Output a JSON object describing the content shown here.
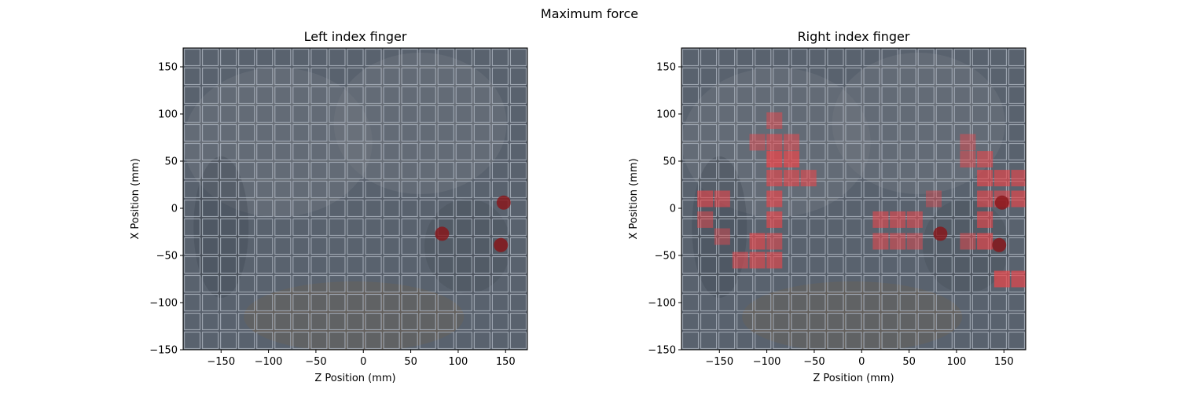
{
  "figure_title": "Maximum force",
  "colors": {
    "background_tile": "#5f6977",
    "tile_stroke": "#a7afbb",
    "highlight": "#e8464b",
    "marker": "#8a1418",
    "shade": "#2f333b"
  },
  "chart_data": [
    {
      "type": "heatmap",
      "title": "Left index finger",
      "xlabel": "Z Position (mm)",
      "ylabel": "X Position (mm)",
      "xlim": [
        -190,
        173
      ],
      "ylim": [
        -150,
        170
      ],
      "xticks": [
        -150,
        -100,
        -50,
        0,
        50,
        100,
        150
      ],
      "yticks": [
        -150,
        -100,
        -50,
        0,
        50,
        100,
        150
      ],
      "xtick_labels": [
        "−150",
        "−100",
        "−50",
        "0",
        "50",
        "100",
        "150"
      ],
      "ytick_labels": [
        "−150",
        "−100",
        "−50",
        "0",
        "50",
        "100",
        "150"
      ],
      "grid": true,
      "highlighted_cells": [],
      "markers": [
        {
          "x": 83,
          "y": -27
        },
        {
          "x": 148,
          "y": 6
        },
        {
          "x": 145,
          "y": -39
        }
      ]
    },
    {
      "type": "heatmap",
      "title": "Right index finger",
      "xlabel": "Z Position (mm)",
      "ylabel": "X Position (mm)",
      "xlim": [
        -190,
        173
      ],
      "ylim": [
        -150,
        170
      ],
      "xticks": [
        -150,
        -100,
        -50,
        0,
        50,
        100,
        150
      ],
      "yticks": [
        -150,
        -100,
        -50,
        0,
        50,
        100,
        150
      ],
      "xtick_labels": [
        "−150",
        "−100",
        "−50",
        "0",
        "50",
        "100",
        "150"
      ],
      "ytick_labels": [
        "−150",
        "−100",
        "−50",
        "0",
        "50",
        "100",
        "150"
      ],
      "grid": true,
      "highlighted_cells": [
        {
          "x": -92,
          "y": 93,
          "level": 0.35
        },
        {
          "x": -165,
          "y": 10,
          "level": 0.55
        },
        {
          "x": -147,
          "y": 10,
          "level": 0.5
        },
        {
          "x": -92,
          "y": 70,
          "level": 0.45
        },
        {
          "x": -74,
          "y": 70,
          "level": 0.4
        },
        {
          "x": -110,
          "y": 70,
          "level": 0.3
        },
        {
          "x": -92,
          "y": 52,
          "level": 0.75
        },
        {
          "x": -74,
          "y": 52,
          "level": 0.7
        },
        {
          "x": -92,
          "y": 32,
          "level": 0.55
        },
        {
          "x": -74,
          "y": 32,
          "level": 0.55
        },
        {
          "x": -56,
          "y": 32,
          "level": 0.5
        },
        {
          "x": -92,
          "y": 10,
          "level": 0.6
        },
        {
          "x": -92,
          "y": -12,
          "level": 0.6
        },
        {
          "x": -110,
          "y": -35,
          "level": 0.6
        },
        {
          "x": -92,
          "y": -35,
          "level": 0.45
        },
        {
          "x": -128,
          "y": -55,
          "level": 0.45
        },
        {
          "x": -110,
          "y": -55,
          "level": 0.55
        },
        {
          "x": -92,
          "y": -55,
          "level": 0.55
        },
        {
          "x": -165,
          "y": -12,
          "level": 0.35
        },
        {
          "x": -147,
          "y": -30,
          "level": 0.25
        },
        {
          "x": 20,
          "y": -12,
          "level": 0.5
        },
        {
          "x": 38,
          "y": -12,
          "level": 0.5
        },
        {
          "x": 56,
          "y": -12,
          "level": 0.45
        },
        {
          "x": 20,
          "y": -35,
          "level": 0.45
        },
        {
          "x": 38,
          "y": -35,
          "level": 0.4
        },
        {
          "x": 56,
          "y": -35,
          "level": 0.3
        },
        {
          "x": 112,
          "y": 70,
          "level": 0.25
        },
        {
          "x": 112,
          "y": 52,
          "level": 0.35
        },
        {
          "x": 130,
          "y": 52,
          "level": 0.5
        },
        {
          "x": 130,
          "y": 32,
          "level": 0.6
        },
        {
          "x": 148,
          "y": 32,
          "level": 0.6
        },
        {
          "x": 166,
          "y": 32,
          "level": 0.55
        },
        {
          "x": 130,
          "y": 10,
          "level": 0.55
        },
        {
          "x": 148,
          "y": 10,
          "level": 0.5
        },
        {
          "x": 166,
          "y": 10,
          "level": 0.6
        },
        {
          "x": 130,
          "y": -12,
          "level": 0.55
        },
        {
          "x": 130,
          "y": -35,
          "level": 0.6
        },
        {
          "x": 112,
          "y": -35,
          "level": 0.35
        },
        {
          "x": 148,
          "y": -75,
          "level": 0.7
        },
        {
          "x": 166,
          "y": -75,
          "level": 0.65
        },
        {
          "x": 76,
          "y": 10,
          "level": 0.2
        }
      ],
      "markers": [
        {
          "x": 83,
          "y": -27
        },
        {
          "x": 148,
          "y": 6
        },
        {
          "x": 145,
          "y": -39
        }
      ]
    }
  ]
}
